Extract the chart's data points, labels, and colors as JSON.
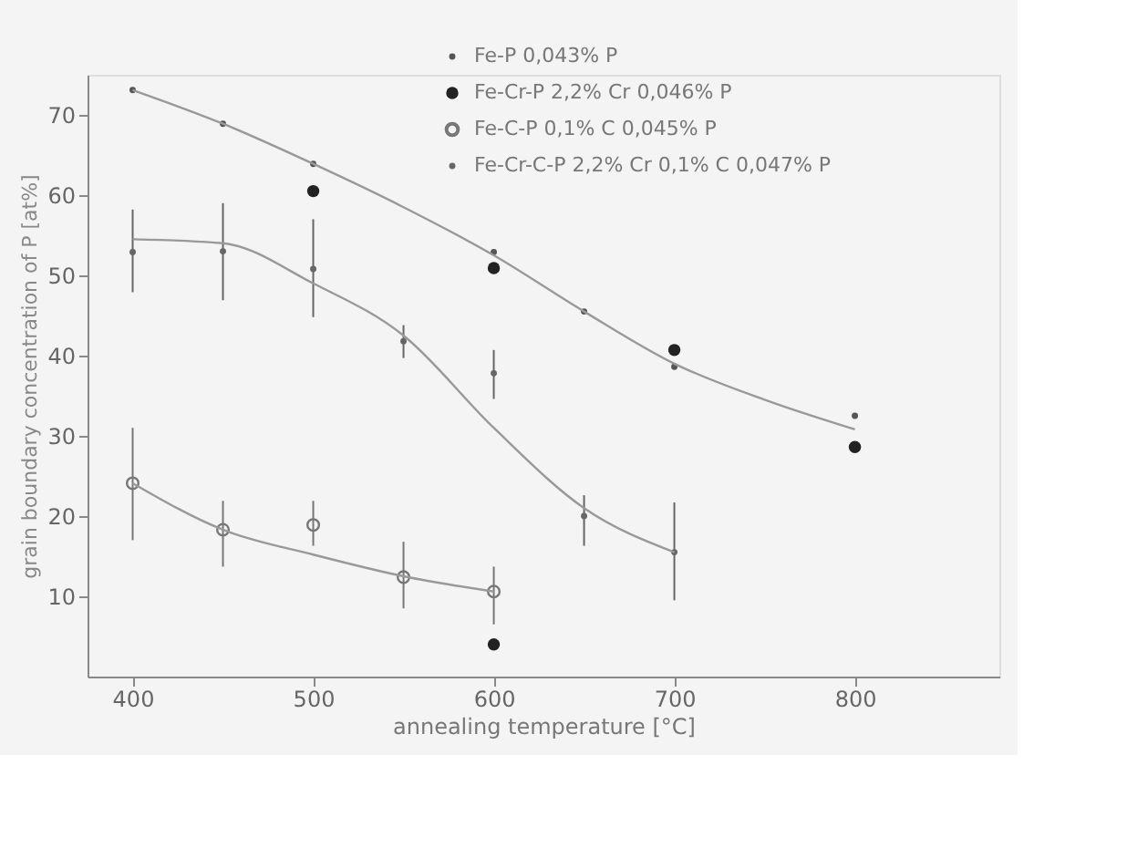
{
  "chart_data": {
    "type": "scatter",
    "xlabel": "annealing temperature  [°C]",
    "ylabel": "grain boundary concentration of P  [at%]",
    "xlim": [
      375,
      880
    ],
    "ylim": [
      0,
      75
    ],
    "xticks": [
      400,
      500,
      600,
      700,
      800
    ],
    "yticks": [
      10,
      20,
      30,
      40,
      50,
      60,
      70
    ],
    "grid": false,
    "legend": "top right",
    "series": [
      {
        "name": "Fe-P   0,043% P",
        "marker": "circle",
        "color": "#555555",
        "x": [
          400,
          450,
          500,
          600,
          650,
          700,
          800
        ],
        "values": [
          73.1,
          68.9,
          63.9,
          52.9,
          45.5,
          38.6,
          32.5
        ]
      },
      {
        "name": "Fe-Cr-P   2,2% Cr   0,046% P",
        "marker": "circle",
        "color": "#222222",
        "x": [
          500,
          600,
          600,
          700,
          800
        ],
        "values": [
          60.5,
          50.9,
          4.0,
          40.7,
          28.6
        ]
      },
      {
        "name": "Fe-C-P   0,1% C   0,045% P",
        "marker": "circle",
        "color": "#777777",
        "x": [
          400,
          450,
          500,
          550,
          600
        ],
        "values": [
          24.1,
          18.3,
          18.9,
          12.4,
          10.6
        ],
        "errors": [
          [
            17.0,
            31.0
          ],
          [
            13.7,
            21.9
          ],
          [
            16.3,
            21.9
          ],
          [
            8.5,
            16.8
          ],
          [
            6.5,
            13.7
          ]
        ]
      },
      {
        "name": "Fe-Cr-C-P   2,2% Cr   0,1% C   0,047% P",
        "marker": "circle",
        "color": "#666666",
        "x": [
          400,
          450,
          500,
          550,
          600,
          650,
          700
        ],
        "values": [
          52.9,
          53.0,
          50.8,
          41.8,
          37.8,
          20.0,
          15.5
        ],
        "errors": [
          [
            47.9,
            58.2
          ],
          [
            46.9,
            59.0
          ],
          [
            44.8,
            57.0
          ],
          [
            39.7,
            43.8
          ],
          [
            34.6,
            40.7
          ],
          [
            16.3,
            22.6
          ],
          [
            9.5,
            21.7
          ]
        ]
      },
      {
        "type": "line",
        "color": "#999999",
        "x": [
          400,
          450,
          500,
          550,
          600,
          650,
          700,
          750,
          800
        ],
        "values": [
          73.1,
          68.9,
          63.9,
          58.5,
          52.5,
          45.5,
          39.0,
          34.5,
          30.8
        ]
      },
      {
        "type": "line",
        "color": "#999999",
        "x": [
          400,
          450,
          500,
          550,
          600,
          650,
          700
        ],
        "values": [
          54.5,
          54.0,
          49.0,
          42.5,
          31.0,
          21.0,
          15.5
        ]
      },
      {
        "type": "line",
        "color": "#999999",
        "x": [
          400,
          450,
          500,
          550,
          600
        ],
        "values": [
          24.1,
          18.3,
          15.2,
          12.5,
          10.6
        ]
      }
    ]
  }
}
